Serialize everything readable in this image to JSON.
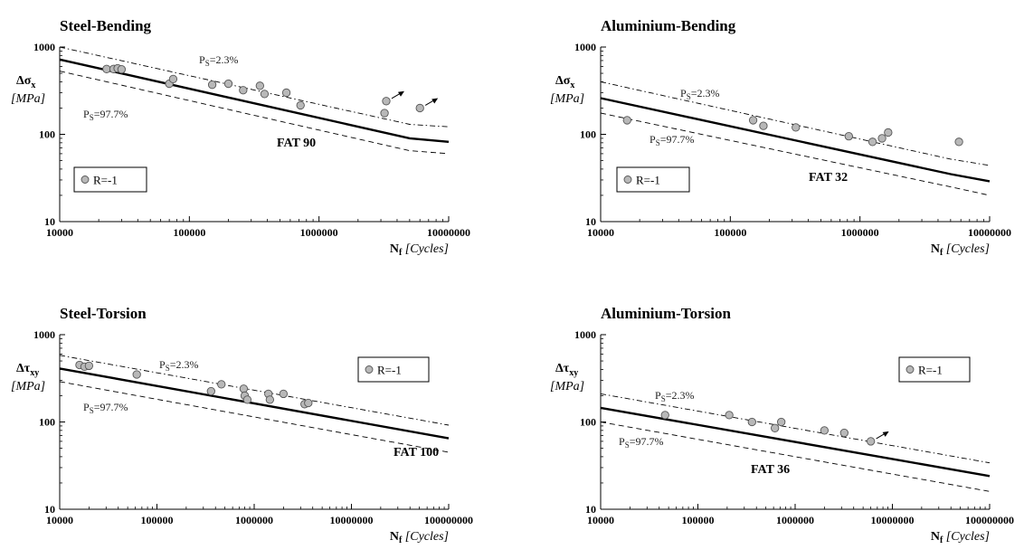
{
  "chart_data": [
    {
      "type": "scatter",
      "title": "Steel-Bending",
      "ylabel_symbol": "Δσ",
      "ylabel_sub": "x",
      "yunit": "[MPa]",
      "xlabel_symbol": "N",
      "xlabel_sub": "f",
      "xunit": "[Cycles]",
      "xscale": "log",
      "yscale": "log",
      "xlim": [
        10000,
        10000000
      ],
      "ylim": [
        10,
        1000
      ],
      "xticks": [
        10000,
        100000,
        1000000,
        10000000
      ],
      "xtick_labels": [
        "10000",
        "100000",
        "1000000",
        "10000000"
      ],
      "yticks": [
        10,
        100,
        1000
      ],
      "ytick_labels": [
        "10",
        "100",
        "1000"
      ],
      "legend": {
        "label": "R=-1",
        "position": "bottom-left"
      },
      "annotations": {
        "ps_upper": "PS=2.3%",
        "ps_lower": "PS=97.7%",
        "fat": "FAT 90"
      },
      "curves": {
        "design": [
          [
            10000,
            720
          ],
          [
            5000000,
            90
          ],
          [
            10000000,
            82
          ]
        ],
        "upper": [
          [
            10000,
            1000
          ],
          [
            5000000,
            130
          ],
          [
            10000000,
            122
          ]
        ],
        "lower": [
          [
            10000,
            530
          ],
          [
            5000000,
            65
          ],
          [
            10000000,
            60
          ]
        ]
      },
      "series": [
        {
          "name": "R=-1",
          "points": [
            [
              23000,
              560
            ],
            [
              26000,
              560
            ],
            [
              28000,
              570
            ],
            [
              30000,
              555
            ],
            [
              70000,
              380
            ],
            [
              75000,
              430
            ],
            [
              150000,
              370
            ],
            [
              200000,
              380
            ],
            [
              260000,
              320
            ],
            [
              350000,
              360
            ],
            [
              380000,
              290
            ],
            [
              560000,
              300
            ],
            [
              720000,
              215
            ],
            [
              3200000,
              175
            ],
            [
              3300000,
              240
            ],
            [
              6000000,
              200
            ]
          ]
        }
      ],
      "runouts": [
        [
          3300000,
          240
        ],
        [
          6000000,
          200
        ]
      ]
    },
    {
      "type": "scatter",
      "title": "Aluminium-Bending",
      "ylabel_symbol": "Δσ",
      "ylabel_sub": "x",
      "yunit": "[MPa]",
      "xlabel_symbol": "N",
      "xlabel_sub": "f",
      "xunit": "[Cycles]",
      "xscale": "log",
      "yscale": "log",
      "xlim": [
        10000,
        10000000
      ],
      "ylim": [
        10,
        1000
      ],
      "xticks": [
        10000,
        100000,
        1000000,
        10000000
      ],
      "xtick_labels": [
        "10000",
        "100000",
        "1000000",
        "10000000"
      ],
      "yticks": [
        10,
        100,
        1000
      ],
      "ytick_labels": [
        "10",
        "100",
        "1000"
      ],
      "legend": {
        "label": "R=-1",
        "position": "bottom-left"
      },
      "annotations": {
        "ps_upper": "PS=2.3%",
        "ps_lower": "PS=97.7%",
        "fat": "FAT 32"
      },
      "curves": {
        "design": [
          [
            10000,
            260
          ],
          [
            5000000,
            35
          ],
          [
            10000000,
            29
          ]
        ],
        "upper": [
          [
            10000,
            400
          ],
          [
            5000000,
            52
          ],
          [
            10000000,
            44
          ]
        ],
        "lower": [
          [
            10000,
            175
          ],
          [
            5000000,
            25
          ],
          [
            10000000,
            20
          ]
        ]
      },
      "series": [
        {
          "name": "R=-1",
          "points": [
            [
              16000,
              145
            ],
            [
              150000,
              145
            ],
            [
              180000,
              125
            ],
            [
              320000,
              120
            ],
            [
              820000,
              95
            ],
            [
              1250000,
              82
            ],
            [
              1480000,
              90
            ],
            [
              1650000,
              105
            ],
            [
              5800000,
              82
            ]
          ]
        }
      ],
      "runouts": []
    },
    {
      "type": "scatter",
      "title": "Steel-Torsion",
      "ylabel_symbol": "Δτ",
      "ylabel_sub": "xy",
      "yunit": "[MPa]",
      "xlabel_symbol": "N",
      "xlabel_sub": "f",
      "xunit": "[Cycles]",
      "xscale": "log",
      "yscale": "log",
      "xlim": [
        10000,
        100000000
      ],
      "ylim": [
        10,
        1000
      ],
      "xticks": [
        10000,
        100000,
        1000000,
        10000000,
        100000000
      ],
      "xtick_labels": [
        "10000",
        "100000",
        "1000000",
        "10000000",
        "100000000"
      ],
      "yticks": [
        10,
        100,
        1000
      ],
      "ytick_labels": [
        "10",
        "100",
        "1000"
      ],
      "legend": {
        "label": "R=-1",
        "position": "top-right"
      },
      "annotations": {
        "ps_upper": "PS=2.3%",
        "ps_lower": "PS=97.7%",
        "fat": "FAT 100"
      },
      "curves": {
        "design": [
          [
            10000,
            410
          ],
          [
            100000000,
            65
          ]
        ],
        "upper": [
          [
            10000,
            580
          ],
          [
            100000000,
            92
          ]
        ],
        "lower": [
          [
            10000,
            290
          ],
          [
            100000000,
            45
          ]
        ]
      },
      "series": [
        {
          "name": "R=-1",
          "points": [
            [
              16000,
              450
            ],
            [
              18000,
              430
            ],
            [
              20000,
              440
            ],
            [
              62000,
              350
            ],
            [
              360000,
              225
            ],
            [
              460000,
              270
            ],
            [
              780000,
              240
            ],
            [
              800000,
              200
            ],
            [
              850000,
              180
            ],
            [
              1400000,
              210
            ],
            [
              1450000,
              180
            ],
            [
              2000000,
              210
            ],
            [
              3300000,
              160
            ],
            [
              3600000,
              165
            ]
          ]
        }
      ],
      "runouts": []
    },
    {
      "type": "scatter",
      "title": "Aluminium-Torsion",
      "ylabel_symbol": "Δτ",
      "ylabel_sub": "xy",
      "yunit": "[MPa]",
      "xlabel_symbol": "N",
      "xlabel_sub": "f",
      "xunit": "[Cycles]",
      "xscale": "log",
      "yscale": "log",
      "xlim": [
        10000,
        100000000
      ],
      "ylim": [
        10,
        1000
      ],
      "xticks": [
        10000,
        100000,
        1000000,
        10000000,
        100000000
      ],
      "xtick_labels": [
        "10000",
        "100000",
        "1000000",
        "10000000",
        "100000000"
      ],
      "yticks": [
        10,
        100,
        1000
      ],
      "ytick_labels": [
        "10",
        "100",
        "1000"
      ],
      "legend": {
        "label": "R=-1",
        "position": "top-right"
      },
      "annotations": {
        "ps_upper": "PS=2.3%",
        "ps_lower": "PS=97.7%",
        "fat": "FAT 36"
      },
      "curves": {
        "design": [
          [
            10000,
            145
          ],
          [
            100000000,
            24
          ]
        ],
        "upper": [
          [
            10000,
            210
          ],
          [
            100000000,
            34
          ]
        ],
        "lower": [
          [
            10000,
            100
          ],
          [
            100000000,
            16
          ]
        ]
      },
      "series": [
        {
          "name": "R=-1",
          "points": [
            [
              46000,
              120
            ],
            [
              210000,
              120
            ],
            [
              360000,
              100
            ],
            [
              620000,
              85
            ],
            [
              720000,
              100
            ],
            [
              2000000,
              80
            ],
            [
              3200000,
              75
            ],
            [
              6000000,
              60
            ]
          ]
        }
      ],
      "runouts": [
        [
          6000000,
          60
        ]
      ]
    }
  ]
}
